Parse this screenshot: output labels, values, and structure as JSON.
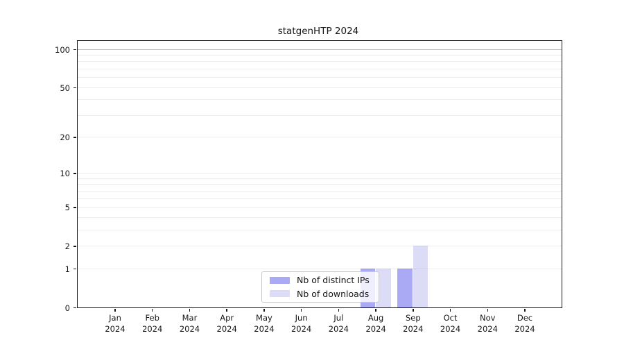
{
  "chart_data": {
    "type": "bar",
    "title": "statgenHTP 2024",
    "categories": [
      "Jan 2024",
      "Feb 2024",
      "Mar 2024",
      "Apr 2024",
      "May 2024",
      "Jun 2024",
      "Jul 2024",
      "Aug 2024",
      "Sep 2024",
      "Oct 2024",
      "Nov 2024",
      "Dec 2024"
    ],
    "month_labels": [
      "Jan",
      "Feb",
      "Mar",
      "Apr",
      "May",
      "Jun",
      "Jul",
      "Aug",
      "Sep",
      "Oct",
      "Nov",
      "Dec"
    ],
    "year_label": "2024",
    "series": [
      {
        "name": "Nb of distinct IPs",
        "color": "#a9a9f4",
        "values": [
          0,
          0,
          0,
          0,
          0,
          0,
          0,
          1,
          1,
          0,
          0,
          0
        ]
      },
      {
        "name": "Nb of downloads",
        "color": "#dcdcf7",
        "values": [
          0,
          0,
          0,
          0,
          0,
          0,
          0,
          1,
          2,
          0,
          0,
          0
        ]
      }
    ],
    "xlabel": "",
    "ylabel": "",
    "y_scale": "log1p",
    "y_ticks": [
      0,
      1,
      2,
      5,
      10,
      20,
      50,
      100
    ],
    "y_tick_labels": [
      "0",
      "1",
      "2",
      "5",
      "10",
      "20",
      "50",
      "100"
    ],
    "gridline_values": [
      1,
      2,
      3,
      4,
      5,
      6,
      7,
      8,
      9,
      10,
      20,
      30,
      40,
      50,
      60,
      70,
      80,
      90,
      100
    ],
    "ylim": [
      0,
      115
    ],
    "grid": "horizontal",
    "legend_position": "lower center"
  }
}
